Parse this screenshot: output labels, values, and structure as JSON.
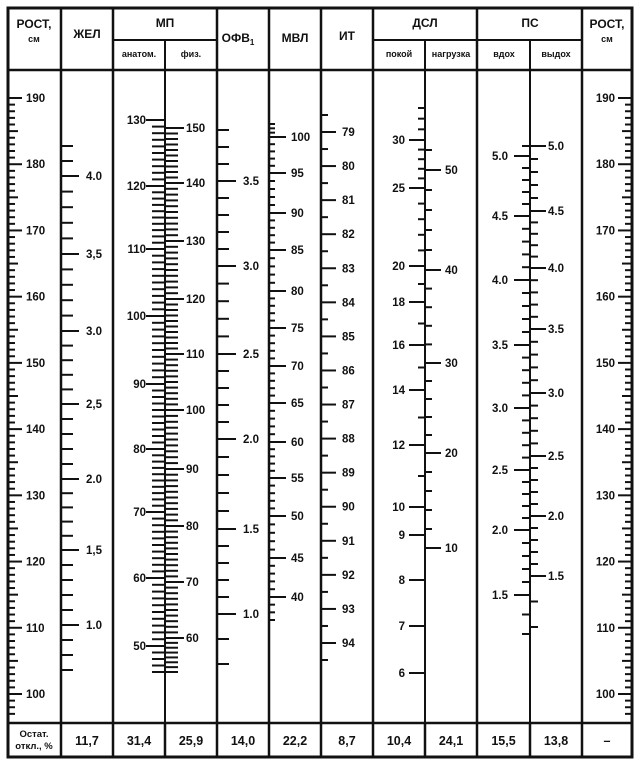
{
  "colors": {
    "ink": "#111111",
    "background": "#ffffff"
  },
  "header": {
    "rost_left": [
      "РОСТ,",
      "см"
    ],
    "zhel": "ЖЕЛ",
    "mp": "МП",
    "mp_anat": "анатом.",
    "mp_phys": "физ.",
    "ofv": "ОФВ",
    "ofv_sub": "1",
    "mvl": "МВЛ",
    "it": "ИТ",
    "dsl": "ДСЛ",
    "dsl_rest": "покой",
    "dsl_load": "нагрузка",
    "ps": "ПС",
    "ps_in": "вдох",
    "ps_out": "выдох",
    "rost_right": [
      "РОСТ,",
      "см"
    ]
  },
  "footer": {
    "label": [
      "Остат.",
      "откл., %"
    ],
    "values": [
      "11,7",
      "31,4",
      "25,9",
      "14,0",
      "22,2",
      "8,7",
      "10,4",
      "24,1",
      "15,5",
      "13,8",
      "–"
    ]
  },
  "scales": {
    "rost_left": {
      "labels": [
        "190",
        "180",
        "170",
        "160",
        "150",
        "140",
        "130",
        "120",
        "110",
        "100"
      ],
      "ticks": {
        "min": 97,
        "max": 190,
        "step": 1
      }
    },
    "zhel": {
      "labels": [
        "4.0",
        "3,5",
        "3.0",
        "2,5",
        "2.0",
        "1,5",
        "1.0"
      ],
      "ticks": {
        "min": 0.7,
        "max": 4.2,
        "step": 0.1
      }
    },
    "mp_anat": {
      "labels": [
        "130",
        "120",
        "110",
        "100",
        "90",
        "80",
        "70",
        "60",
        "50"
      ],
      "ticks": {
        "min": 46,
        "max": 130,
        "step": 1
      }
    },
    "mp_phys": {
      "labels": [
        "150",
        "140",
        "130",
        "120",
        "110",
        "100",
        "90",
        "80",
        "70",
        "60"
      ],
      "ticks": {
        "min": 53,
        "max": 150,
        "step": 1
      }
    },
    "ofv": {
      "labels": [
        "3.5",
        "3.0",
        "2.5",
        "2.0",
        "1.5",
        "1.0"
      ],
      "ticks": {
        "min": 0.8,
        "max": 3.8,
        "step": 0.1
      }
    },
    "mvl": {
      "labels": [
        "100",
        "95",
        "90",
        "85",
        "80",
        "75",
        "70",
        "65",
        "60",
        "55",
        "50",
        "45",
        "40"
      ],
      "ticks": {
        "min": 37,
        "max": 103,
        "step": 1
      }
    },
    "it": {
      "labels": [
        "79",
        "80",
        "81",
        "82",
        "83",
        "84",
        "85",
        "86",
        "87",
        "88",
        "89",
        "90",
        "91",
        "92",
        "93",
        "94"
      ],
      "ticks": {
        "min": 78.5,
        "max": 94.5,
        "step": 0.5
      }
    },
    "dsl_rest": {
      "labels": [
        "30",
        "25",
        "20",
        "18",
        "16",
        "14",
        "12",
        "10",
        "9",
        "8",
        "7",
        "6"
      ],
      "minor_ticks": [
        33,
        32,
        31,
        29,
        28,
        27,
        26,
        24,
        23,
        22,
        21,
        19,
        17,
        15,
        13,
        11
      ]
    },
    "dsl_load": {
      "labels": [
        "50",
        "40",
        "30",
        "20",
        "10"
      ],
      "minor_ticks": [
        52,
        48,
        46,
        44,
        42,
        38,
        36,
        34,
        32,
        28,
        26,
        24,
        22,
        18,
        16,
        14,
        12
      ]
    },
    "ps_in": {
      "labels": [
        "5.0",
        "4.5",
        "4.0",
        "3.5",
        "3.0",
        "2.5",
        "2.0",
        "1.5"
      ],
      "ticks": {
        "min": 1.3,
        "max": 5.1,
        "step": 0.1
      }
    },
    "ps_out": {
      "labels": [
        "5.0",
        "4.5",
        "4.0",
        "3.5",
        "3.0",
        "2.5",
        "2.0",
        "1.5"
      ],
      "ticks": {
        "min": 1.3,
        "max": 5.0,
        "step": 0.1
      }
    },
    "rost_right": {
      "labels": [
        "190",
        "180",
        "170",
        "160",
        "150",
        "140",
        "130",
        "120",
        "110",
        "100"
      ],
      "ticks": {
        "min": 97,
        "max": 190,
        "step": 1
      }
    }
  }
}
